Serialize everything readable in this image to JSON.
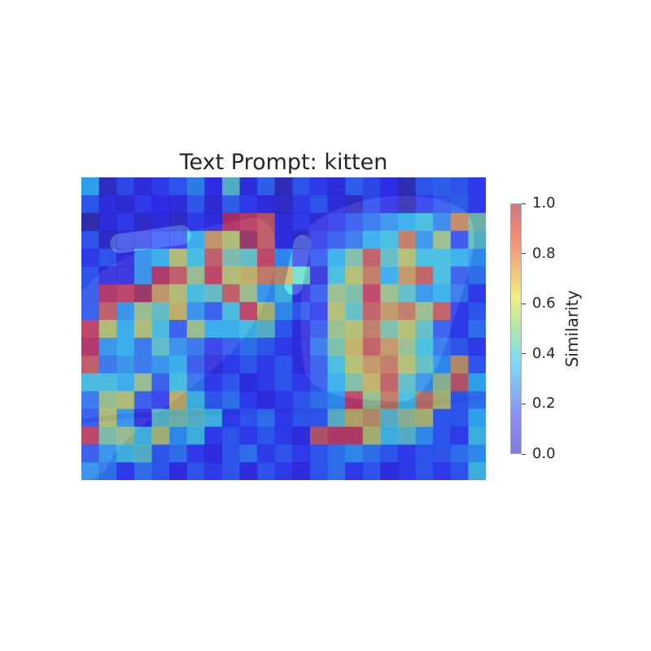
{
  "chart_data": {
    "type": "heatmap",
    "title": "Text Prompt: kitten",
    "colorbar": {
      "label": "Similarity",
      "range": [
        0.0,
        1.0
      ],
      "ticks": [
        "0.0",
        "0.2",
        "0.4",
        "0.6",
        "0.8",
        "1.0"
      ],
      "colormap": "jet",
      "alpha": 0.5
    },
    "rows": 17,
    "cols": 23,
    "values": [
      [
        0.35,
        0.05,
        0.18,
        0.1,
        0.15,
        0.2,
        0.28,
        0.12,
        0.45,
        0.1,
        0.22,
        0.03,
        0.2,
        0.15,
        0.1,
        0.22,
        0.18,
        0.12,
        0.02,
        0.2,
        0.22,
        0.2,
        0.15
      ],
      [
        0.2,
        0.1,
        0.08,
        0.15,
        0.12,
        0.1,
        0.2,
        0.08,
        0.22,
        0.15,
        0.1,
        0.05,
        0.15,
        0.2,
        0.1,
        0.05,
        0.18,
        0.12,
        0.02,
        0.15,
        0.2,
        0.22,
        0.15
      ],
      [
        0.0,
        0.1,
        0.15,
        0.05,
        0.1,
        0.05,
        0.15,
        0.1,
        0.9,
        0.85,
        0.8,
        0.1,
        0.15,
        0.1,
        0.15,
        0.2,
        0.25,
        0.3,
        0.35,
        0.4,
        0.28,
        0.72,
        0.5
      ],
      [
        0.2,
        0.05,
        0.1,
        0.1,
        0.15,
        0.15,
        0.35,
        0.7,
        0.6,
        0.95,
        0.8,
        0.1,
        0.05,
        0.15,
        0.2,
        0.25,
        0.35,
        0.4,
        0.75,
        0.3,
        0.55,
        0.18,
        0.45
      ],
      [
        0.15,
        0.2,
        0.1,
        0.3,
        0.35,
        0.6,
        0.4,
        0.8,
        0.5,
        0.45,
        0.85,
        0.3,
        0.1,
        0.2,
        0.35,
        0.5,
        0.8,
        0.45,
        0.6,
        0.4,
        0.4,
        0.35,
        0.3
      ],
      [
        0.2,
        0.1,
        0.1,
        0.3,
        0.9,
        0.8,
        0.55,
        0.85,
        0.6,
        0.65,
        0.75,
        0.7,
        0.45,
        0.1,
        0.4,
        0.6,
        0.75,
        0.35,
        0.7,
        0.8,
        0.4,
        0.2,
        0.25
      ],
      [
        0.2,
        0.9,
        0.85,
        0.95,
        0.7,
        0.6,
        0.4,
        0.45,
        0.8,
        0.55,
        0.3,
        0.4,
        0.1,
        0.2,
        0.55,
        0.5,
        0.85,
        0.55,
        0.45,
        0.3,
        0.35,
        0.25,
        0.15
      ],
      [
        0.2,
        0.8,
        0.3,
        0.55,
        0.45,
        0.65,
        0.3,
        0.2,
        0.4,
        0.85,
        0.6,
        0.3,
        0.2,
        0.15,
        0.6,
        0.45,
        0.8,
        0.7,
        0.75,
        0.55,
        0.8,
        0.15,
        0.2
      ],
      [
        0.85,
        0.6,
        0.35,
        0.6,
        0.4,
        0.2,
        0.55,
        0.35,
        0.35,
        0.4,
        0.45,
        0.2,
        0.1,
        0.2,
        0.55,
        0.6,
        0.75,
        0.5,
        0.6,
        0.45,
        0.2,
        0.15,
        0.25
      ],
      [
        0.9,
        0.3,
        0.35,
        0.25,
        0.45,
        0.3,
        0.25,
        0.15,
        0.2,
        0.25,
        0.2,
        0.15,
        0.1,
        0.25,
        0.5,
        0.65,
        0.8,
        0.7,
        0.55,
        0.4,
        0.25,
        0.2,
        0.15
      ],
      [
        0.8,
        0.25,
        0.3,
        0.25,
        0.3,
        0.35,
        0.2,
        0.1,
        0.15,
        0.2,
        0.15,
        0.2,
        0.1,
        0.2,
        0.4,
        0.6,
        0.7,
        0.75,
        0.6,
        0.45,
        0.3,
        0.7,
        0.2
      ],
      [
        0.4,
        0.4,
        0.35,
        0.55,
        0.2,
        0.4,
        0.25,
        0.15,
        0.2,
        0.1,
        0.15,
        0.2,
        0.15,
        0.2,
        0.35,
        0.5,
        0.65,
        0.8,
        0.45,
        0.3,
        0.55,
        0.8,
        0.35
      ],
      [
        0.25,
        0.55,
        0.6,
        0.2,
        0.15,
        0.65,
        0.4,
        0.2,
        0.25,
        0.15,
        0.1,
        0.15,
        0.2,
        0.25,
        0.3,
        0.85,
        0.55,
        0.75,
        0.4,
        0.75,
        0.6,
        0.2,
        0.25
      ],
      [
        0.2,
        0.6,
        0.3,
        0.1,
        0.45,
        0.5,
        0.45,
        0.4,
        0.15,
        0.2,
        0.25,
        0.15,
        0.2,
        0.2,
        0.45,
        0.65,
        0.7,
        0.45,
        0.55,
        0.6,
        0.2,
        0.2,
        0.35
      ],
      [
        0.85,
        0.5,
        0.55,
        0.4,
        0.6,
        0.3,
        0.4,
        0.15,
        0.2,
        0.15,
        0.2,
        0.15,
        0.1,
        0.8,
        0.85,
        0.85,
        0.6,
        0.4,
        0.45,
        0.3,
        0.2,
        0.15,
        0.4
      ],
      [
        0.2,
        0.3,
        0.4,
        0.45,
        0.2,
        0.25,
        0.15,
        0.1,
        0.2,
        0.25,
        0.15,
        0.2,
        0.15,
        0.2,
        0.25,
        0.3,
        0.25,
        0.2,
        0.15,
        0.2,
        0.2,
        0.25,
        0.3
      ],
      [
        0.3,
        0.25,
        0.15,
        0.25,
        0.2,
        0.1,
        0.2,
        0.15,
        0.2,
        0.1,
        0.2,
        0.15,
        0.1,
        0.2,
        0.25,
        0.15,
        0.2,
        0.1,
        0.15,
        0.2,
        0.15,
        0.2,
        0.4
      ]
    ]
  }
}
